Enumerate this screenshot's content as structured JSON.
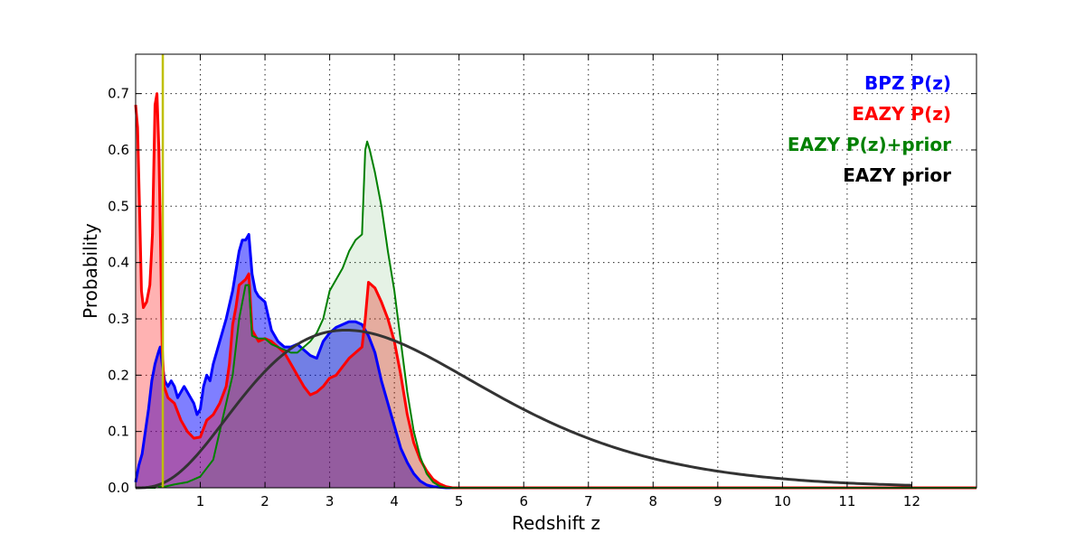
{
  "chart_data": {
    "type": "area",
    "xlabel": "Redshift z",
    "ylabel": "Probability",
    "xlim": [
      0,
      13
    ],
    "ylim": [
      0,
      0.77
    ],
    "x_ticks": [
      1,
      2,
      3,
      4,
      5,
      6,
      7,
      8,
      9,
      10,
      11,
      12
    ],
    "x_tick_labels": [
      "1",
      "2",
      "3",
      "4",
      "5",
      "6",
      "7",
      "8",
      "9",
      "10",
      "11",
      "12"
    ],
    "y_ticks": [
      0.0,
      0.1,
      0.2,
      0.3,
      0.4,
      0.5,
      0.6,
      0.7
    ],
    "y_tick_labels": [
      "0.0",
      "0.1",
      "0.2",
      "0.3",
      "0.4",
      "0.5",
      "0.6",
      "0.7"
    ],
    "grid": true,
    "legend_position": "top-right",
    "vertical_line": {
      "x": 0.42,
      "color": "#bfbf00"
    },
    "series": [
      {
        "name": "BPZ P(z)",
        "color": "#0000ff",
        "fill": true,
        "points": [
          [
            0,
            0.01
          ],
          [
            0.05,
            0.04
          ],
          [
            0.1,
            0.06
          ],
          [
            0.15,
            0.1
          ],
          [
            0.2,
            0.14
          ],
          [
            0.25,
            0.19
          ],
          [
            0.3,
            0.22
          ],
          [
            0.35,
            0.24
          ],
          [
            0.38,
            0.25
          ],
          [
            0.41,
            0.22
          ],
          [
            0.45,
            0.19
          ],
          [
            0.5,
            0.18
          ],
          [
            0.55,
            0.19
          ],
          [
            0.6,
            0.18
          ],
          [
            0.65,
            0.16
          ],
          [
            0.7,
            0.17
          ],
          [
            0.75,
            0.18
          ],
          [
            0.8,
            0.17
          ],
          [
            0.85,
            0.16
          ],
          [
            0.9,
            0.15
          ],
          [
            0.95,
            0.13
          ],
          [
            1.0,
            0.14
          ],
          [
            1.05,
            0.18
          ],
          [
            1.1,
            0.2
          ],
          [
            1.15,
            0.19
          ],
          [
            1.2,
            0.22
          ],
          [
            1.3,
            0.26
          ],
          [
            1.4,
            0.3
          ],
          [
            1.5,
            0.35
          ],
          [
            1.6,
            0.42
          ],
          [
            1.65,
            0.44
          ],
          [
            1.7,
            0.44
          ],
          [
            1.75,
            0.45
          ],
          [
            1.8,
            0.38
          ],
          [
            1.85,
            0.35
          ],
          [
            1.9,
            0.34
          ],
          [
            2.0,
            0.33
          ],
          [
            2.1,
            0.28
          ],
          [
            2.2,
            0.26
          ],
          [
            2.3,
            0.25
          ],
          [
            2.4,
            0.25
          ],
          [
            2.5,
            0.255
          ],
          [
            2.6,
            0.245
          ],
          [
            2.7,
            0.235
          ],
          [
            2.8,
            0.23
          ],
          [
            2.9,
            0.26
          ],
          [
            3.0,
            0.275
          ],
          [
            3.1,
            0.285
          ],
          [
            3.2,
            0.29
          ],
          [
            3.3,
            0.295
          ],
          [
            3.4,
            0.295
          ],
          [
            3.5,
            0.29
          ],
          [
            3.6,
            0.27
          ],
          [
            3.7,
            0.24
          ],
          [
            3.8,
            0.19
          ],
          [
            3.9,
            0.15
          ],
          [
            4.0,
            0.11
          ],
          [
            4.1,
            0.07
          ],
          [
            4.2,
            0.045
          ],
          [
            4.3,
            0.025
          ],
          [
            4.4,
            0.012
          ],
          [
            4.5,
            0.005
          ],
          [
            4.6,
            0.002
          ],
          [
            4.8,
            0.0
          ],
          [
            13.0,
            0.0
          ]
        ]
      },
      {
        "name": "EAZY P(z)",
        "color": "#ff0000",
        "fill": true,
        "points": [
          [
            0,
            0.68
          ],
          [
            0.03,
            0.64
          ],
          [
            0.06,
            0.5
          ],
          [
            0.09,
            0.35
          ],
          [
            0.12,
            0.32
          ],
          [
            0.17,
            0.33
          ],
          [
            0.22,
            0.36
          ],
          [
            0.26,
            0.45
          ],
          [
            0.3,
            0.68
          ],
          [
            0.33,
            0.7
          ],
          [
            0.36,
            0.6
          ],
          [
            0.39,
            0.4
          ],
          [
            0.41,
            0.25
          ],
          [
            0.44,
            0.18
          ],
          [
            0.5,
            0.16
          ],
          [
            0.6,
            0.15
          ],
          [
            0.7,
            0.12
          ],
          [
            0.8,
            0.1
          ],
          [
            0.9,
            0.088
          ],
          [
            1.0,
            0.09
          ],
          [
            1.1,
            0.12
          ],
          [
            1.2,
            0.13
          ],
          [
            1.3,
            0.15
          ],
          [
            1.4,
            0.18
          ],
          [
            1.45,
            0.22
          ],
          [
            1.5,
            0.29
          ],
          [
            1.55,
            0.32
          ],
          [
            1.6,
            0.36
          ],
          [
            1.7,
            0.37
          ],
          [
            1.75,
            0.38
          ],
          [
            1.8,
            0.28
          ],
          [
            1.9,
            0.26
          ],
          [
            2.0,
            0.265
          ],
          [
            2.1,
            0.26
          ],
          [
            2.2,
            0.25
          ],
          [
            2.3,
            0.24
          ],
          [
            2.4,
            0.22
          ],
          [
            2.5,
            0.2
          ],
          [
            2.6,
            0.18
          ],
          [
            2.7,
            0.165
          ],
          [
            2.8,
            0.17
          ],
          [
            2.9,
            0.18
          ],
          [
            3.0,
            0.195
          ],
          [
            3.1,
            0.2
          ],
          [
            3.2,
            0.215
          ],
          [
            3.3,
            0.23
          ],
          [
            3.4,
            0.24
          ],
          [
            3.5,
            0.25
          ],
          [
            3.55,
            0.3
          ],
          [
            3.6,
            0.365
          ],
          [
            3.7,
            0.355
          ],
          [
            3.8,
            0.33
          ],
          [
            3.9,
            0.3
          ],
          [
            4.0,
            0.26
          ],
          [
            4.1,
            0.2
          ],
          [
            4.2,
            0.13
          ],
          [
            4.3,
            0.08
          ],
          [
            4.4,
            0.05
          ],
          [
            4.5,
            0.03
          ],
          [
            4.6,
            0.015
          ],
          [
            4.7,
            0.007
          ],
          [
            4.8,
            0.002
          ],
          [
            4.9,
            0.0
          ],
          [
            13.0,
            0.0
          ]
        ]
      },
      {
        "name": "EAZY P(z)+prior",
        "color": "#008000",
        "fill": true,
        "points": [
          [
            0,
            0.0
          ],
          [
            0.3,
            0.0
          ],
          [
            0.33,
            0.005
          ],
          [
            0.36,
            0.002
          ],
          [
            0.45,
            0.002
          ],
          [
            0.6,
            0.006
          ],
          [
            0.8,
            0.01
          ],
          [
            0.9,
            0.015
          ],
          [
            1.0,
            0.02
          ],
          [
            1.1,
            0.035
          ],
          [
            1.2,
            0.05
          ],
          [
            1.3,
            0.1
          ],
          [
            1.4,
            0.15
          ],
          [
            1.5,
            0.2
          ],
          [
            1.6,
            0.3
          ],
          [
            1.7,
            0.36
          ],
          [
            1.75,
            0.36
          ],
          [
            1.8,
            0.27
          ],
          [
            1.9,
            0.265
          ],
          [
            2.0,
            0.265
          ],
          [
            2.1,
            0.255
          ],
          [
            2.2,
            0.25
          ],
          [
            2.3,
            0.245
          ],
          [
            2.4,
            0.24
          ],
          [
            2.5,
            0.24
          ],
          [
            2.6,
            0.25
          ],
          [
            2.7,
            0.26
          ],
          [
            2.8,
            0.275
          ],
          [
            2.9,
            0.3
          ],
          [
            3.0,
            0.35
          ],
          [
            3.1,
            0.37
          ],
          [
            3.2,
            0.39
          ],
          [
            3.3,
            0.42
          ],
          [
            3.4,
            0.44
          ],
          [
            3.5,
            0.45
          ],
          [
            3.55,
            0.6
          ],
          [
            3.58,
            0.615
          ],
          [
            3.62,
            0.6
          ],
          [
            3.7,
            0.56
          ],
          [
            3.8,
            0.5
          ],
          [
            3.9,
            0.42
          ],
          [
            4.0,
            0.35
          ],
          [
            4.1,
            0.26
          ],
          [
            4.2,
            0.17
          ],
          [
            4.3,
            0.1
          ],
          [
            4.4,
            0.055
          ],
          [
            4.5,
            0.025
          ],
          [
            4.6,
            0.01
          ],
          [
            4.7,
            0.003
          ],
          [
            4.8,
            0.0
          ],
          [
            13.0,
            0.0
          ]
        ]
      },
      {
        "name": "EAZY prior",
        "color": "#333333",
        "fill": false
      }
    ]
  }
}
